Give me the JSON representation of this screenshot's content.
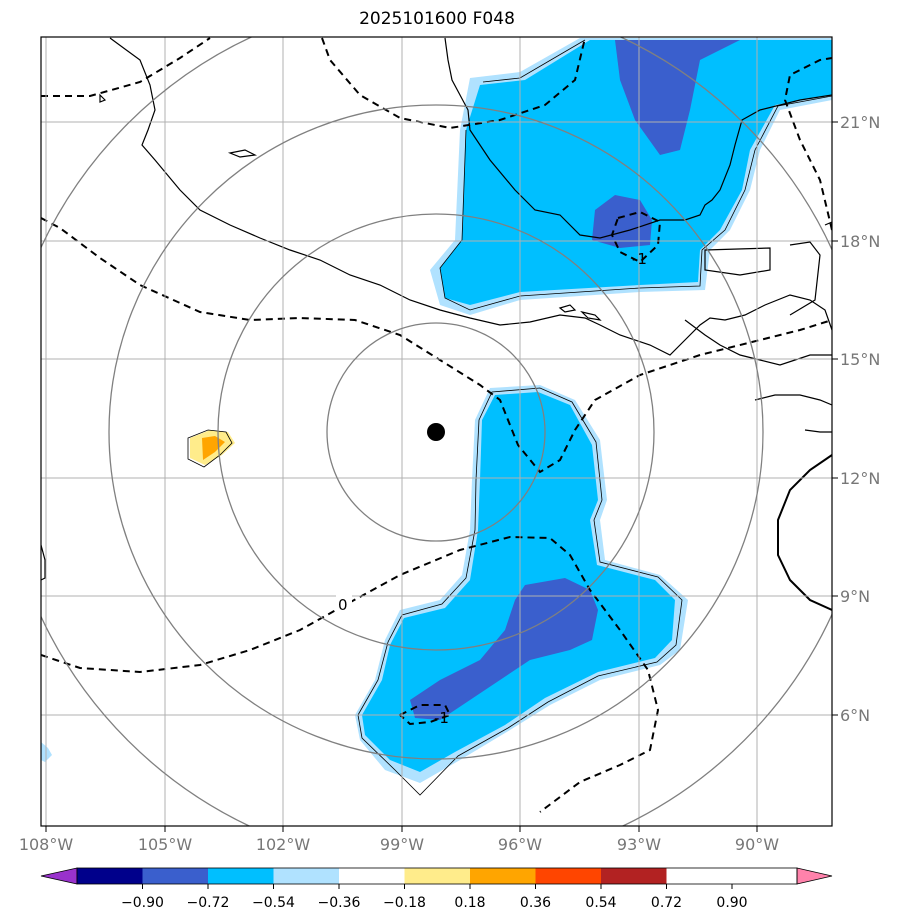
{
  "title": "2025101600 F048",
  "map": {
    "lon_ticks": [
      "108°W",
      "105°W",
      "102°W",
      "99°W",
      "96°W",
      "93°W",
      "90°W"
    ],
    "lat_ticks": [
      "21°N",
      "18°N",
      "15°N",
      "12°N",
      "9°N",
      "6°N"
    ],
    "contour_labels": [
      "0",
      "-1",
      "-1"
    ],
    "center_marker": "storm-center"
  },
  "colorbar": {
    "tick_labels": [
      "−0.90",
      "−0.72",
      "−0.54",
      "−0.36",
      "−0.18",
      "0.18",
      "0.36",
      "0.54",
      "0.72",
      "0.90"
    ],
    "colors": [
      "#9932cc",
      "#00008b",
      "#3a5fcd",
      "#00bfff",
      "#b0e2ff",
      "#ffffff",
      "#ffec8b",
      "#ffa500",
      "#ff4500",
      "#b22222",
      "#ff82ab"
    ]
  }
}
